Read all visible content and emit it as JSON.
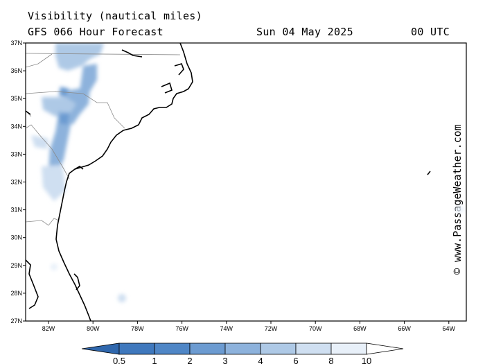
{
  "header": {
    "title": "Visibility (nautical miles)",
    "subtitle": "GFS 066 Hour Forecast",
    "date": "Sun 04 May 2025",
    "time": "00 UTC"
  },
  "credit": "© www.PassageWeather.com",
  "map": {
    "lat_labels": [
      "37N",
      "36N",
      "35N",
      "34N",
      "33N",
      "32N",
      "31N",
      "30N",
      "29N",
      "28N",
      "27N"
    ],
    "lon_labels": [
      "82W",
      "80W",
      "78W",
      "76W",
      "74W",
      "72W",
      "70W",
      "68W",
      "66W",
      "64W"
    ]
  },
  "colorbar": {
    "labels": [
      "0.5",
      "1",
      "2",
      "3",
      "4",
      "6",
      "8",
      "10"
    ],
    "colors": [
      "#3f78bd",
      "#4f86c6",
      "#6c9bd1",
      "#8db2dc",
      "#aec9e6",
      "#cfdff1",
      "#e8f0f9",
      "#ffffff"
    ]
  }
}
